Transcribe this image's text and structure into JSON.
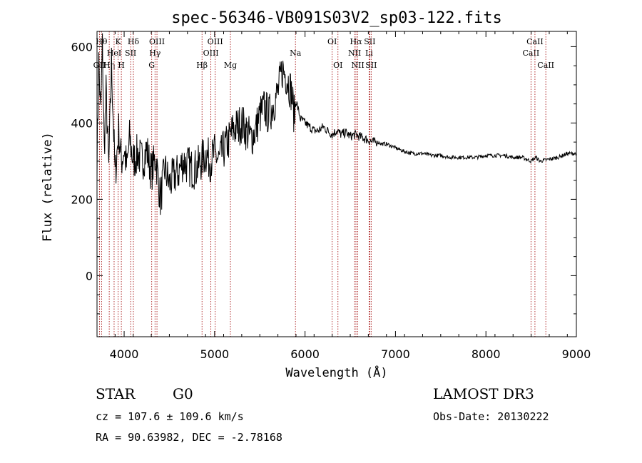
{
  "chart_data": {
    "type": "line",
    "title": "spec-56346-VB091S03V2_sp03-122.fits",
    "xlabel": "Wavelength (Å)",
    "ylabel": "Flux (relative)",
    "xlim": [
      3700,
      9000
    ],
    "ylim": [
      -160,
      640
    ],
    "xticks": [
      4000,
      5000,
      6000,
      7000,
      8000,
      9000
    ],
    "yticks": [
      0,
      200,
      400,
      600
    ],
    "spectral_lines": [
      {
        "name": "OII",
        "wave": 3727,
        "row": 2
      },
      {
        "name": "Hθ",
        "wave": 3750,
        "row": 0
      },
      {
        "name": "Hη",
        "wave": 3835,
        "row": 2
      },
      {
        "name": "HeI",
        "wave": 3889,
        "row": 1
      },
      {
        "name": "K",
        "wave": 3934,
        "row": 0
      },
      {
        "name": "H",
        "wave": 3969,
        "row": 2
      },
      {
        "name": "Hδ",
        "wave": 4102,
        "row": 0
      },
      {
        "name": "SII",
        "wave": 4072,
        "row": 1
      },
      {
        "name": "G",
        "wave": 4305,
        "row": 2
      },
      {
        "name": "Hγ",
        "wave": 4341,
        "row": 1
      },
      {
        "name": "OIII",
        "wave": 4363,
        "row": 0
      },
      {
        "name": "Hβ",
        "wave": 4861,
        "row": 2
      },
      {
        "name": "OIII",
        "wave": 4959,
        "row": 1
      },
      {
        "name": "OIII",
        "wave": 5007,
        "row": 0
      },
      {
        "name": "Mg",
        "wave": 5175,
        "row": 2
      },
      {
        "name": "Na",
        "wave": 5894,
        "row": 1
      },
      {
        "name": "OI",
        "wave": 6300,
        "row": 0
      },
      {
        "name": "OI",
        "wave": 6364,
        "row": 2
      },
      {
        "name": "NII",
        "wave": 6548,
        "row": 1
      },
      {
        "name": "Hα",
        "wave": 6563,
        "row": 0
      },
      {
        "name": "NII",
        "wave": 6583,
        "row": 2
      },
      {
        "name": "SII",
        "wave": 6716,
        "row": 0
      },
      {
        "name": "Li",
        "wave": 6708,
        "row": 1
      },
      {
        "name": "SII",
        "wave": 6731,
        "row": 2
      },
      {
        "name": "CaII",
        "wave": 8498,
        "row": 1
      },
      {
        "name": "CaII",
        "wave": 8542,
        "row": 0
      },
      {
        "name": "CaII",
        "wave": 8662,
        "row": 2
      }
    ],
    "series": [
      {
        "name": "flux",
        "x": [
          3700,
          3720,
          3740,
          3760,
          3780,
          3800,
          3830,
          3860,
          3900,
          3940,
          3970,
          4000,
          4030,
          4060,
          4100,
          4150,
          4200,
          4250,
          4300,
          4350,
          4400,
          4450,
          4500,
          4550,
          4600,
          4650,
          4700,
          4750,
          4800,
          4850,
          4880,
          4900,
          4950,
          5000,
          5050,
          5100,
          5150,
          5200,
          5250,
          5300,
          5350,
          5400,
          5450,
          5500,
          5550,
          5600,
          5650,
          5700,
          5750,
          5800,
          5850,
          5880,
          5900,
          5950,
          6000,
          6050,
          6100,
          6150,
          6200,
          6250,
          6300,
          6350,
          6400,
          6450,
          6500,
          6550,
          6600,
          6650,
          6700,
          6750,
          6800,
          6850,
          6900,
          6950,
          7000,
          7100,
          7200,
          7300,
          7400,
          7500,
          7600,
          7700,
          7800,
          7900,
          8000,
          8100,
          8200,
          8300,
          8400,
          8500,
          8550,
          8600,
          8700,
          8800,
          8900,
          9000
        ],
        "values": [
          300,
          560,
          420,
          600,
          330,
          480,
          280,
          560,
          260,
          380,
          300,
          330,
          280,
          360,
          300,
          320,
          300,
          330,
          270,
          310,
          200,
          280,
          240,
          260,
          270,
          300,
          290,
          280,
          280,
          300,
          310,
          320,
          300,
          320,
          300,
          330,
          350,
          380,
          390,
          400,
          380,
          360,
          380,
          420,
          440,
          420,
          450,
          480,
          540,
          520,
          480,
          420,
          460,
          410,
          400,
          390,
          380,
          380,
          390,
          380,
          370,
          380,
          370,
          375,
          365,
          370,
          365,
          360,
          355,
          350,
          350,
          345,
          345,
          340,
          335,
          325,
          320,
          320,
          315,
          315,
          310,
          310,
          310,
          310,
          315,
          315,
          315,
          310,
          310,
          300,
          310,
          300,
          305,
          310,
          320,
          320
        ]
      }
    ]
  },
  "info": {
    "object_class": "STAR",
    "subclass": "G0",
    "survey": "LAMOST DR3",
    "redshift_line": "cz = 107.6 ± 109.6 km/s",
    "obs_date_line": "Obs-Date: 20130222",
    "coords_line": "RA =  90.63982, DEC =  -2.78168"
  }
}
